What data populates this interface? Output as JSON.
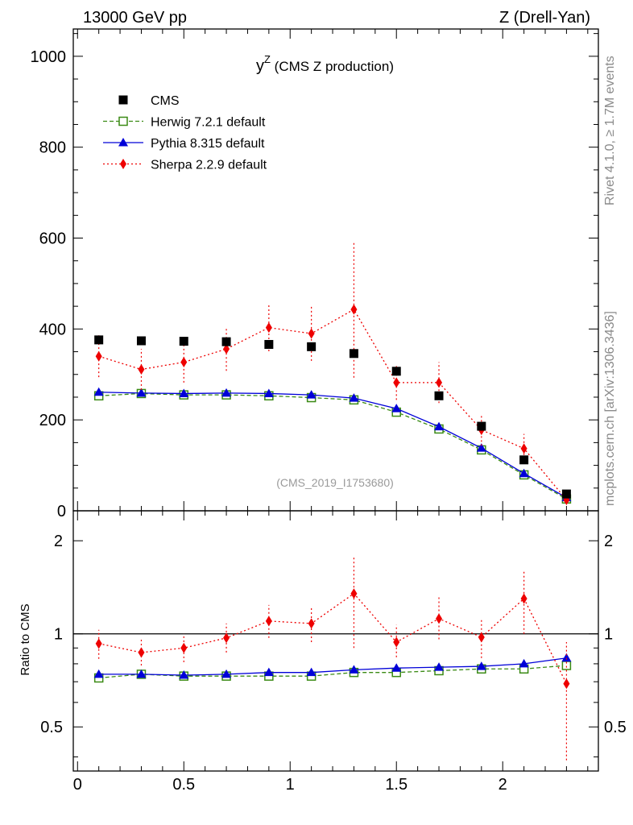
{
  "header": {
    "left": "13000 GeV pp",
    "right": "Z (Drell-Yan)"
  },
  "side": {
    "rivet": "Rivet 4.1.0, ≥ 1.7M events",
    "mcplots": "mcplots.cern.ch [arXiv:1306.3436]"
  },
  "chart_data": {
    "type": "scatter",
    "title_main": "y",
    "title_sup": "Z",
    "title_rest": " (CMS Z production)",
    "analysis_tag": "(CMS_2019_I1753680)",
    "xlim": [
      -0.02,
      2.45
    ],
    "x_ticks": [
      0,
      0.5,
      1,
      1.5,
      2
    ],
    "x_tick_labels": [
      "0",
      "0.5",
      "1",
      "1.5",
      "2"
    ],
    "x": [
      0.1,
      0.3,
      0.5,
      0.7,
      0.9,
      1.1,
      1.3,
      1.5,
      1.7,
      1.9,
      2.1,
      2.3
    ],
    "main": {
      "ylim": [
        0,
        1060
      ],
      "y_ticks": [
        0,
        200,
        400,
        600,
        800,
        1000
      ],
      "y_tick_labels": [
        "0",
        "200",
        "400",
        "600",
        "800",
        "1000"
      ]
    },
    "ratio": {
      "ylabel": "Ratio to CMS",
      "log": true,
      "ylim": [
        0.36,
        2.5
      ],
      "reference": 1,
      "y_ticks": [
        0.5,
        1,
        2
      ],
      "y_tick_labels": [
        "0.5",
        "1",
        "2"
      ]
    },
    "series": [
      {
        "name": "CMS",
        "legend": "CMS",
        "color": "#000000",
        "marker": "square",
        "line": "none",
        "values": [
          376,
          374,
          373,
          372,
          366,
          361,
          346,
          307,
          253,
          186,
          112,
          37
        ],
        "err": [
          9,
          8,
          8,
          8,
          8,
          8,
          8,
          8,
          7,
          6,
          4,
          2
        ]
      },
      {
        "name": "Herwig",
        "legend": "Herwig 7.2.1 default",
        "color": "#3a8a14",
        "marker": "open-square",
        "line": "dashed",
        "values": [
          253,
          258,
          255,
          255,
          253,
          249,
          244,
          217,
          180,
          134,
          79,
          26
        ],
        "ratio": [
          0.72,
          0.74,
          0.73,
          0.73,
          0.73,
          0.73,
          0.75,
          0.75,
          0.76,
          0.77,
          0.77,
          0.79
        ],
        "err": [
          2,
          2,
          2,
          2,
          2,
          2,
          2,
          2,
          2,
          2,
          2,
          1
        ],
        "ratio_err": [
          0.01,
          0.01,
          0.01,
          0.01,
          0.01,
          0.01,
          0.01,
          0.01,
          0.01,
          0.01,
          0.01,
          0.02
        ]
      },
      {
        "name": "Pythia",
        "legend": "Pythia 8.315 default",
        "color": "#0000d8",
        "marker": "triangle",
        "line": "solid",
        "values": [
          261,
          259,
          258,
          259,
          258,
          255,
          248,
          225,
          185,
          138,
          82,
          29
        ],
        "ratio": [
          0.74,
          0.74,
          0.735,
          0.74,
          0.75,
          0.75,
          0.765,
          0.775,
          0.78,
          0.785,
          0.8,
          0.835
        ],
        "err": [
          2,
          2,
          2,
          2,
          2,
          2,
          2,
          2,
          2,
          2,
          2,
          1
        ],
        "ratio_err": [
          0.01,
          0.01,
          0.01,
          0.01,
          0.01,
          0.01,
          0.01,
          0.01,
          0.01,
          0.01,
          0.01,
          0.02
        ]
      },
      {
        "name": "Sherpa",
        "legend": "Sherpa 2.2.9 default",
        "color": "#ee0000",
        "marker": "diamond",
        "line": "dotted",
        "values": [
          340,
          311,
          327,
          356,
          403,
          390,
          443,
          282,
          282,
          178,
          137,
          24
        ],
        "err": [
          46,
          45,
          45,
          48,
          52,
          60,
          150,
          38,
          45,
          35,
          32,
          8
        ],
        "ratio": [
          0.93,
          0.87,
          0.9,
          0.97,
          1.1,
          1.08,
          1.35,
          0.94,
          1.12,
          0.975,
          1.3,
          0.69
        ],
        "ratio_err_lo": [
          0.1,
          0.08,
          0.09,
          0.1,
          0.13,
          0.14,
          0.45,
          0.1,
          0.16,
          0.14,
          0.3,
          0.3
        ],
        "ratio_err_hi": [
          0.1,
          0.09,
          0.1,
          0.11,
          0.14,
          0.15,
          0.42,
          0.13,
          0.2,
          0.15,
          0.3,
          0.25
        ]
      }
    ]
  }
}
